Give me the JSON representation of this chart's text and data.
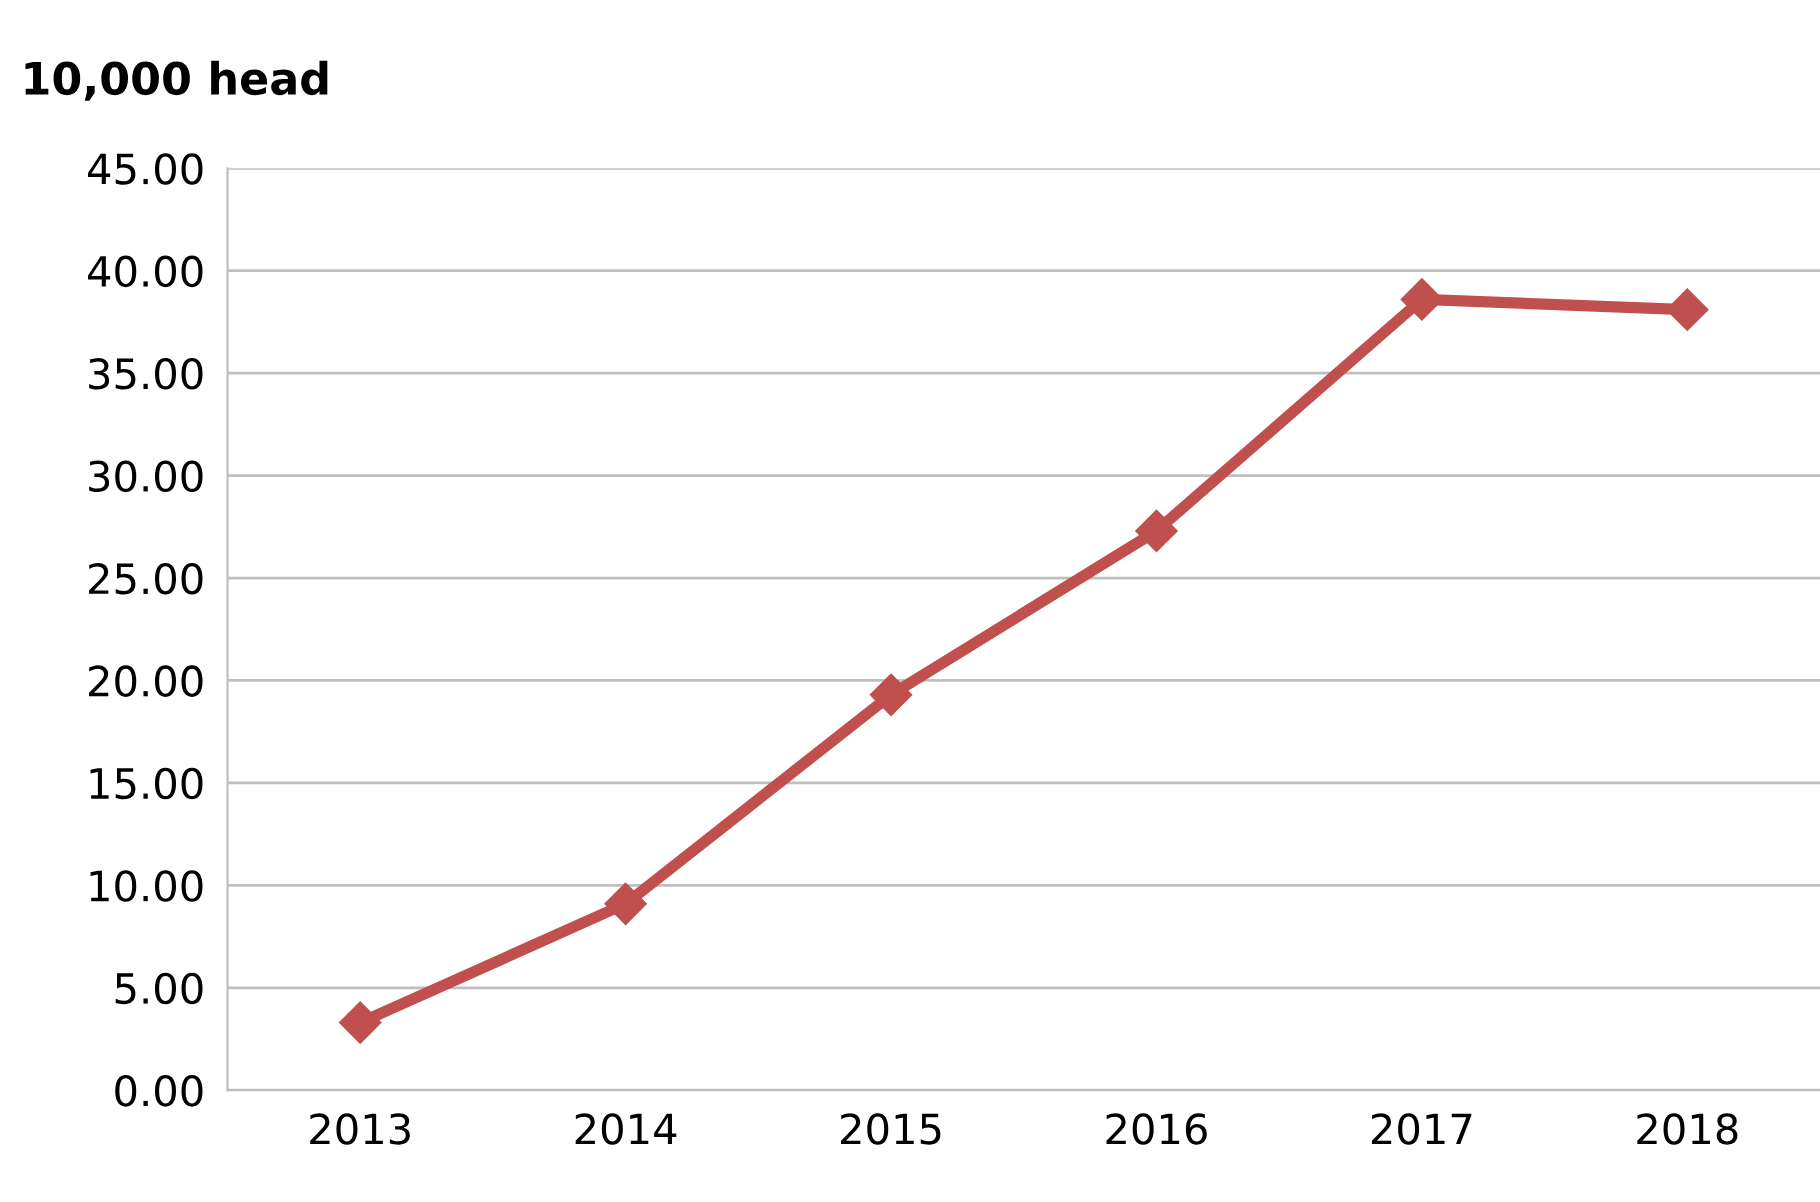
{
  "chart_data": {
    "type": "line",
    "ylabel": "10,000 head",
    "categories": [
      "2013",
      "2014",
      "2015",
      "2016",
      "2017",
      "2018"
    ],
    "series": [
      {
        "color": "#c0504d",
        "values": [
          3.3,
          9.1,
          19.3,
          27.3,
          38.6,
          38.1
        ]
      }
    ],
    "ylim": [
      0,
      45
    ],
    "yticks": [
      {
        "value": 0,
        "label": "0.00"
      },
      {
        "value": 5,
        "label": "5.00"
      },
      {
        "value": 10,
        "label": "10.00"
      },
      {
        "value": 15,
        "label": "15.00"
      },
      {
        "value": 20,
        "label": "20.00"
      },
      {
        "value": 25,
        "label": "25.00"
      },
      {
        "value": 30,
        "label": "30.00"
      },
      {
        "value": 35,
        "label": "35.00"
      },
      {
        "value": 40,
        "label": "40.00"
      },
      {
        "value": 45,
        "label": "45.00"
      }
    ],
    "grid": "y",
    "marker": "diamond",
    "line_style": "solid"
  }
}
